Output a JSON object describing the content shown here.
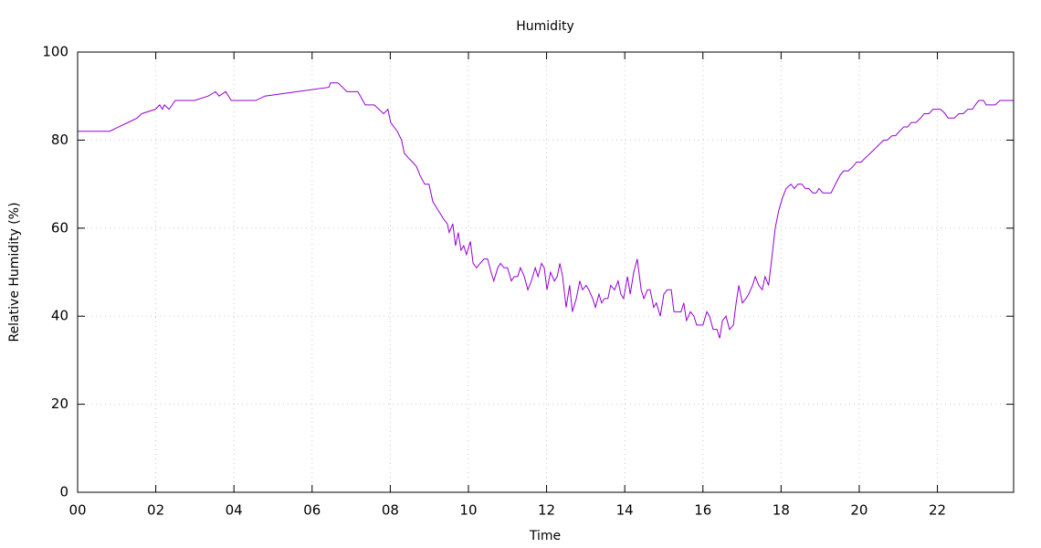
{
  "chart_data": {
    "type": "line",
    "title": "Humidity",
    "x_label": "Time",
    "y_label": "Relative Humidity (%)",
    "xlim": [
      0,
      23.95
    ],
    "ylim": [
      0,
      100
    ],
    "xticks": [
      {
        "value": 0,
        "label": "00"
      },
      {
        "value": 2,
        "label": "02"
      },
      {
        "value": 4,
        "label": "04"
      },
      {
        "value": 6,
        "label": "06"
      },
      {
        "value": 8,
        "label": "08"
      },
      {
        "value": 10,
        "label": "10"
      },
      {
        "value": 12,
        "label": "12"
      },
      {
        "value": 14,
        "label": "14"
      },
      {
        "value": 16,
        "label": "16"
      },
      {
        "value": 18,
        "label": "18"
      },
      {
        "value": 20,
        "label": "20"
      },
      {
        "value": 22,
        "label": "22"
      }
    ],
    "yticks": [
      0,
      20,
      40,
      60,
      80,
      100
    ],
    "grid": true,
    "x": [
      0,
      0.82,
      1.05,
      1.29,
      1.52,
      1.64,
      1.99,
      2.1,
      2.17,
      2.22,
      2.34,
      2.5,
      2.99,
      3.34,
      3.53,
      3.62,
      3.79,
      3.93,
      4.56,
      4.79,
      5.61,
      6.43,
      6.47,
      6.66,
      6.78,
      6.89,
      7.17,
      7.36,
      7.59,
      7.71,
      7.83,
      7.94,
      8.01,
      8.18,
      8.29,
      8.36,
      8.46,
      8.57,
      8.67,
      8.76,
      8.88,
      8.99,
      9.09,
      9.23,
      9.37,
      9.46,
      9.51,
      9.6,
      9.67,
      9.74,
      9.81,
      9.88,
      9.95,
      10.05,
      10.12,
      10.21,
      10.3,
      10.4,
      10.49,
      10.58,
      10.65,
      10.75,
      10.82,
      10.91,
      11.0,
      11.1,
      11.17,
      11.26,
      11.33,
      11.43,
      11.52,
      11.61,
      11.71,
      11.78,
      11.87,
      11.94,
      12.01,
      12.1,
      12.2,
      12.27,
      12.34,
      12.41,
      12.5,
      12.59,
      12.66,
      12.76,
      12.85,
      12.92,
      13.01,
      13.08,
      13.18,
      13.25,
      13.34,
      13.41,
      13.48,
      13.57,
      13.64,
      13.74,
      13.83,
      13.9,
      13.97,
      14.07,
      14.14,
      14.23,
      14.32,
      14.42,
      14.49,
      14.58,
      14.65,
      14.74,
      14.81,
      14.91,
      15.0,
      15.09,
      15.19,
      15.26,
      15.35,
      15.44,
      15.51,
      15.58,
      15.68,
      15.77,
      15.84,
      15.93,
      16.0,
      16.1,
      16.17,
      16.26,
      16.36,
      16.43,
      16.5,
      16.59,
      16.68,
      16.78,
      16.85,
      16.92,
      17.01,
      17.1,
      17.17,
      17.27,
      17.34,
      17.43,
      17.52,
      17.59,
      17.68,
      17.76,
      17.85,
      17.94,
      18.04,
      18.13,
      18.25,
      18.34,
      18.43,
      18.53,
      18.62,
      18.71,
      18.81,
      18.9,
      18.97,
      19.07,
      19.16,
      19.28,
      19.39,
      19.51,
      19.6,
      19.72,
      19.84,
      19.93,
      20.05,
      20.16,
      20.28,
      20.4,
      20.51,
      20.63,
      20.72,
      20.84,
      20.93,
      21.03,
      21.14,
      21.24,
      21.33,
      21.45,
      21.57,
      21.66,
      21.78,
      21.89,
      22.01,
      22.08,
      22.2,
      22.27,
      22.43,
      22.55,
      22.66,
      22.78,
      22.9,
      22.97,
      23.06,
      23.18,
      23.25,
      23.48,
      23.6,
      23.95
    ],
    "series": [
      {
        "name": "Humidity",
        "color": "#9400d3",
        "values": [
          82,
          82,
          83,
          84,
          85,
          86,
          87,
          88,
          87,
          88,
          87,
          89,
          89,
          90,
          91,
          90,
          91,
          89,
          89,
          90,
          91,
          92,
          93,
          93,
          92,
          91,
          91,
          88,
          88,
          87,
          86,
          87,
          84,
          82,
          80,
          77,
          76,
          75,
          74,
          72,
          70,
          70,
          66,
          64,
          62,
          61,
          59,
          61,
          56,
          59,
          55,
          56,
          54,
          57,
          52,
          51,
          52,
          53,
          53,
          50,
          48,
          51,
          52,
          51,
          51,
          48,
          49,
          49,
          51,
          49,
          46,
          48,
          51,
          49,
          52,
          51,
          46,
          50,
          48,
          49,
          52,
          49,
          42,
          47,
          41,
          44,
          48,
          46,
          47,
          46,
          44,
          42,
          45,
          43,
          44,
          44,
          47,
          46,
          48,
          45,
          44,
          49,
          45,
          50,
          53,
          46,
          44,
          46,
          46,
          42,
          43,
          40,
          45,
          46,
          46,
          41,
          41,
          41,
          43,
          39,
          41,
          40,
          38,
          38,
          38,
          41,
          40,
          37,
          37,
          35,
          39,
          40,
          37,
          38,
          43,
          47,
          43,
          44,
          45,
          47,
          49,
          47,
          46,
          49,
          47,
          53,
          60,
          64,
          67,
          69,
          70,
          69,
          70,
          70,
          69,
          69,
          68,
          68,
          69,
          68,
          68,
          68,
          70,
          72,
          73,
          73,
          74,
          75,
          75,
          76,
          77,
          78,
          79,
          80,
          80,
          81,
          81,
          82,
          83,
          83,
          84,
          84,
          85,
          86,
          86,
          87,
          87,
          87,
          86,
          85,
          85,
          86,
          86,
          87,
          87,
          88,
          89,
          89,
          88,
          88,
          89,
          89
        ]
      }
    ]
  }
}
